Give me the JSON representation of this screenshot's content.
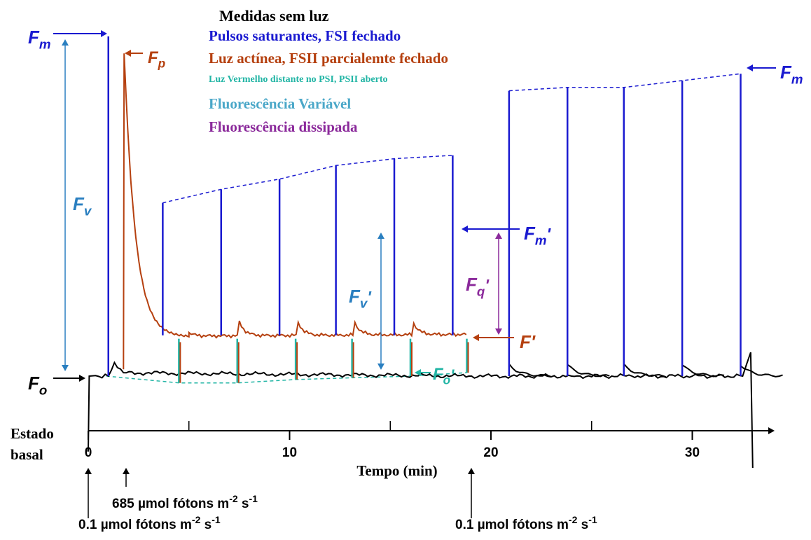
{
  "chart_data": {
    "type": "line",
    "title": "",
    "xlabel": "Tempo (min)",
    "ylabel": "",
    "xlim": [
      0,
      34
    ],
    "x_ticks": [
      0,
      10,
      20,
      30
    ],
    "x_tick_labels": [
      "0",
      "10",
      "20",
      "30"
    ],
    "origin_label": [
      "Estado",
      "basal"
    ],
    "grid": false,
    "legend_title": "Medidas sem luz",
    "legend": [
      {
        "text": "Pulsos saturantes, FSI fechado",
        "color": "#1a1ad0"
      },
      {
        "text": "Luz actínea, FSII parcialemte fechado",
        "color": "#b5400f"
      },
      {
        "text": "Luz Vermelho distante no PSI, PSII aberto",
        "color": "#22b5a5"
      },
      {
        "text": "Fluorescência Variável",
        "color": "#4aa7c8"
      },
      {
        "text": "Fluorescência dissipada",
        "color": "#8b2a9b"
      }
    ],
    "series": [
      {
        "name": "Pulsos saturantes, FSI fechado",
        "color": "#1a1ad0",
        "pulse_times": [
          1.0,
          3.7,
          6.6,
          9.5,
          12.3,
          15.2,
          18.1,
          20.9,
          23.8,
          26.6,
          29.5,
          32.4
        ],
        "pulse_peaks": [
          1.0,
          0.51,
          0.55,
          0.58,
          0.62,
          0.64,
          0.65,
          0.84,
          0.85,
          0.85,
          0.87,
          0.89
        ]
      },
      {
        "name": "Luz actínea, FSII parcialemte fechado",
        "color": "#b5400f",
        "x": [
          1.75,
          1.8,
          2.0,
          2.3,
          2.7,
          3.2,
          3.8,
          5,
          8,
          12,
          18.8
        ],
        "y": [
          0.92,
          0.95,
          0.65,
          0.39,
          0.25,
          0.17,
          0.13,
          0.115,
          0.12,
          0.12,
          0.125
        ]
      },
      {
        "name": "Luz Vermelho distante no PSI, PSII aberto",
        "color": "#22b5a5",
        "x": [
          0.9,
          4.5,
          7.4,
          10.3,
          13.1,
          16.0,
          18.8
        ],
        "y": [
          0.0,
          -0.02,
          -0.02,
          -0.01,
          -0.005,
          0.0,
          0.01
        ]
      },
      {
        "name": "Estado basal",
        "color": "#000000",
        "x": [
          -0.05,
          0.0,
          0.05,
          1.0,
          1.3,
          1.75,
          18.9,
          21,
          24,
          27,
          30,
          32.5,
          32.9,
          33.0
        ],
        "y": [
          -0.22,
          -0.22,
          0.0,
          0.0,
          0.04,
          0.01,
          0.0,
          0.0,
          0.0,
          0.0,
          0.0,
          0.0,
          0.07,
          -0.27
        ]
      }
    ],
    "annotations": [
      {
        "base": "F",
        "sub": "m",
        "prime": "",
        "color": "#1a1ad0"
      },
      {
        "base": "F",
        "sub": "p",
        "prime": "",
        "color": "#b5400f"
      },
      {
        "base": "F",
        "sub": "m",
        "prime": "",
        "color": "#1a1ad0"
      },
      {
        "base": "F",
        "sub": "v",
        "prime": "",
        "color": "#2a7fc0"
      },
      {
        "base": "F",
        "sub": "m",
        "prime": "'",
        "color": "#1a1ad0"
      },
      {
        "base": "F",
        "sub": "v",
        "prime": "'",
        "color": "#2a7fc0"
      },
      {
        "base": "F",
        "sub": "q",
        "prime": "'",
        "color": "#8b2a9b"
      },
      {
        "base": "F",
        "sub": "",
        "prime": "'",
        "color": "#b5400f"
      },
      {
        "base": "F",
        "sub": "o",
        "prime": "'",
        "color": "#22b5a5"
      },
      {
        "base": "F",
        "sub": "o",
        "prime": "",
        "color": "#000000"
      }
    ],
    "light_events": [
      {
        "time": 0,
        "text": "0.1 µmol fótons m",
        "sup": "-2",
        "mid": " s",
        "sup2": "-1"
      },
      {
        "time": 1.8,
        "text": "685 µmol fótons m",
        "sup": "-2",
        "mid": " s",
        "sup2": "-1"
      },
      {
        "time": 18.8,
        "text": "0.1 µmol fótons m",
        "sup": "-2",
        "mid": " s",
        "sup2": "-1"
      }
    ]
  }
}
